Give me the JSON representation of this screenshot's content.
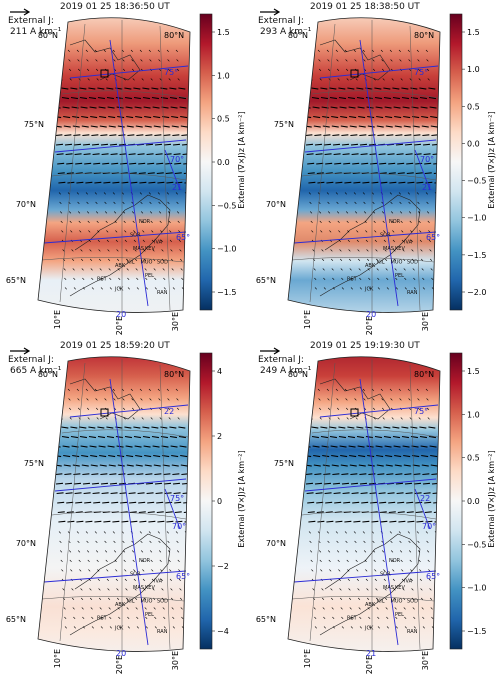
{
  "panels": [
    {
      "timestamp": "2019 01 25 18:36:50 UT",
      "external_label": "External J:",
      "external_value": "211 A km⁻¹",
      "cbar_label": "External (∇×J)z [A km⁻²]",
      "cbar_ticks": [
        "1.5",
        "1.0",
        "0.5",
        "0.0",
        "−0.5",
        "−1.0",
        "−1.5"
      ],
      "lat_labels": [
        "80°N",
        "75°N",
        "70°N",
        "65°N"
      ],
      "lat_right": [
        "80°N"
      ],
      "lon_labels": [
        "10°E",
        "20°E",
        "30°E"
      ],
      "mag_labels": [
        "75°",
        "70°",
        "21",
        "65°",
        "20"
      ],
      "stations": [
        "NOR",
        "SOR",
        "MAS",
        "IVA",
        "KIL",
        "MUO",
        "ABK",
        "KEV",
        "SOD",
        "PEL",
        "RAN",
        "JCK",
        "RST"
      ]
    },
    {
      "timestamp": "2019 01 25 18:38:50 UT",
      "external_label": "External J:",
      "external_value": "293 A km⁻¹",
      "cbar_label": "External (∇×J)z [A km⁻²]",
      "cbar_ticks": [
        "1.5",
        "1.0",
        "0.5",
        "0.0",
        "−0.5",
        "−1.0",
        "−1.5",
        "−2.0"
      ],
      "lat_labels": [
        "80°N",
        "75°N",
        "70°N",
        "65°N"
      ],
      "lat_right": [
        "80°N"
      ],
      "lon_labels": [
        "10°E",
        "20°E",
        "30°E"
      ],
      "mag_labels": [
        "75°",
        "70°",
        "21",
        "65°",
        "20"
      ],
      "stations": [
        "NOR",
        "SOR",
        "MAS",
        "IVA",
        "KIL",
        "MUO",
        "ABK",
        "KEV",
        "SOD",
        "PEL",
        "RAN",
        "JCK",
        "RST"
      ]
    },
    {
      "timestamp": "2019 01 25 18:59:20 UT",
      "external_label": "External J:",
      "external_value": "665 A km⁻¹",
      "cbar_label": "External (∇×J)z [A km⁻²]",
      "cbar_ticks": [
        "4",
        "2",
        "0",
        "−2",
        "−4"
      ],
      "lat_labels": [
        "80°N",
        "75°N",
        "70°N",
        "65°N"
      ],
      "lat_right": [
        "80°N"
      ],
      "lon_labels": [
        "10°E",
        "20°E",
        "30°E"
      ],
      "mag_labels": [
        "22",
        "75°",
        "70°",
        "65°",
        "20"
      ],
      "stations": [
        "NOR",
        "SOR",
        "MAS",
        "IVA",
        "KIL",
        "MUO",
        "ABK",
        "KEV",
        "SOD",
        "PEL",
        "RAN",
        "JCK",
        "RST"
      ]
    },
    {
      "timestamp": "2019 01 25 19:19:30 UT",
      "external_label": "External J:",
      "external_value": "249 A km⁻¹",
      "cbar_label": "External (∇×J)z [A km⁻²]",
      "cbar_ticks": [
        "1.5",
        "1.0",
        "0.5",
        "0.0",
        "−0.5",
        "−1.0",
        "−1.5"
      ],
      "lat_labels": [
        "80°N",
        "75°N",
        "70°N",
        "65°N"
      ],
      "lat_right": [
        "80°N"
      ],
      "lon_labels": [
        "10°E",
        "20°E",
        "30°E"
      ],
      "mag_labels": [
        "75°",
        "22",
        "70°",
        "65°",
        "21"
      ],
      "stations": [
        "NOR",
        "SOR",
        "MAS",
        "IVA",
        "KIL",
        "MUO",
        "ABK",
        "KEV",
        "SOD",
        "PEL",
        "RAN",
        "JCK",
        "RST"
      ]
    }
  ],
  "colors": {
    "positive": "#b2182b",
    "negative": "#2166ac",
    "neutral": "#f7f7f7",
    "mag_grid": "#2b2bd6"
  }
}
